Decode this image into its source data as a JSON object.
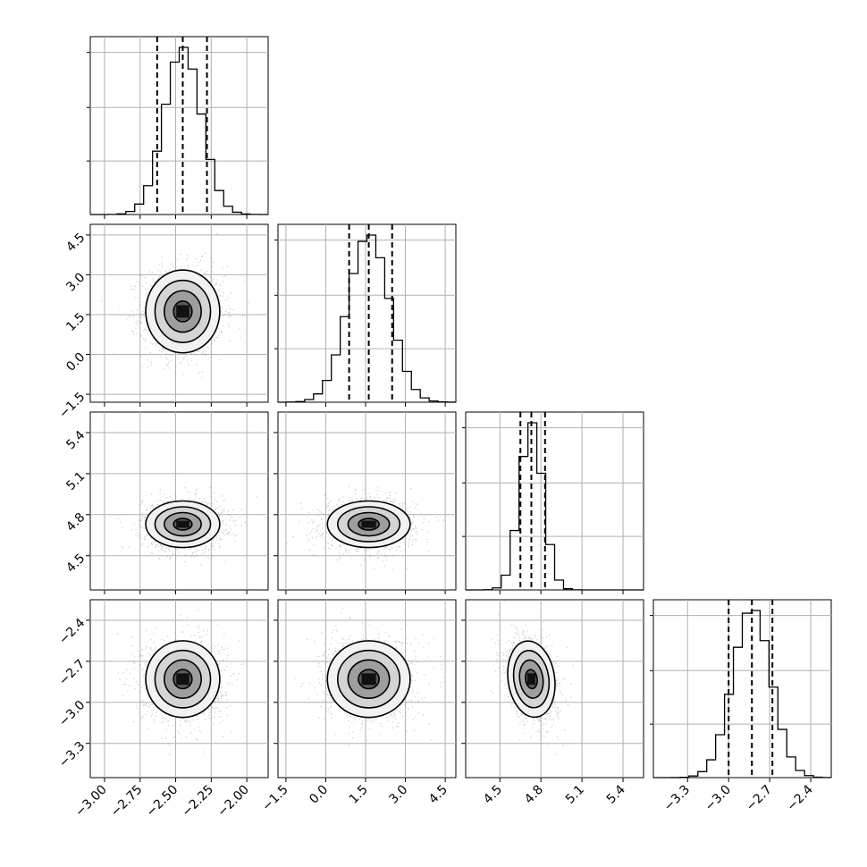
{
  "chart_data": {
    "type": "corner",
    "n_params": 4,
    "grid": true,
    "parameters": [
      {
        "index": 0,
        "mean": -2.45,
        "sd": 0.13,
        "range": [
          -3.1,
          -1.85
        ],
        "ticks": [
          -3.0,
          -2.75,
          -2.5,
          -2.25,
          -2.0
        ],
        "tick_labels": [
          "−3.00",
          "−2.75",
          "−2.50",
          "−2.25",
          "−2.00"
        ],
        "quantiles": [
          -2.63,
          -2.45,
          -2.28
        ]
      },
      {
        "index": 1,
        "mean": 1.62,
        "sd": 0.78,
        "range": [
          -1.8,
          4.9
        ],
        "ticks": [
          -1.5,
          0.0,
          1.5,
          3.0,
          4.5
        ],
        "tick_labels": [
          "−1.5",
          "0.0",
          "1.5",
          "3.0",
          "4.5"
        ],
        "quantiles": [
          0.88,
          1.62,
          2.5
        ]
      },
      {
        "index": 2,
        "mean": 4.73,
        "sd": 0.085,
        "range": [
          4.25,
          5.55
        ],
        "ticks": [
          4.5,
          4.8,
          5.1,
          5.4
        ],
        "tick_labels": [
          "4.5",
          "4.8",
          "5.1",
          "5.4"
        ],
        "quantiles": [
          4.65,
          4.73,
          4.83
        ]
      },
      {
        "index": 3,
        "mean": -2.83,
        "sd": 0.14,
        "range": [
          -3.55,
          -2.25
        ],
        "ticks": [
          -3.3,
          -3.0,
          -2.7,
          -2.4
        ],
        "tick_labels": [
          "−3.3",
          "−3.0",
          "−2.7",
          "−2.4"
        ],
        "quantiles": [
          -3.0,
          -2.83,
          -2.68
        ]
      }
    ],
    "histogram_bins": 20,
    "contour_levels": [
      0.5,
      1.0,
      1.5,
      2.0
    ],
    "correlations": {
      "2-3": -0.3
    }
  }
}
